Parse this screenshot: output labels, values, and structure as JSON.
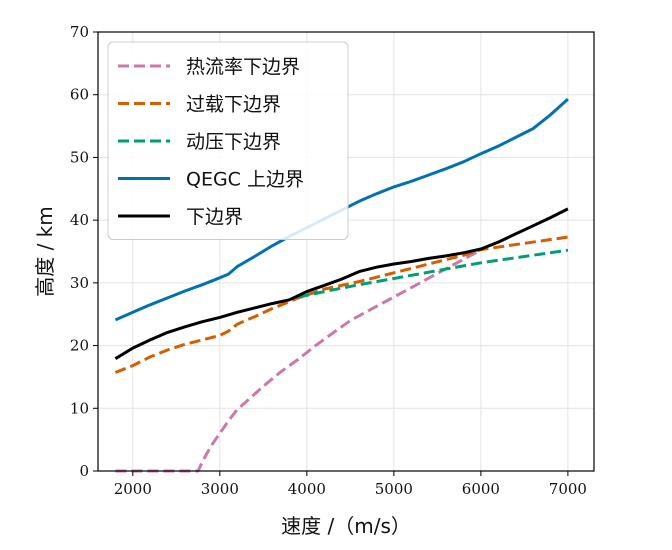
{
  "chart_data": {
    "type": "line",
    "xlabel": "速度 /（m/s）",
    "ylabel": "高度 / km",
    "xlim": [
      1600,
      7300
    ],
    "ylim": [
      0,
      70
    ],
    "x_ticks": [
      2000,
      3000,
      4000,
      5000,
      6000,
      7000
    ],
    "y_ticks": [
      0,
      10,
      20,
      30,
      40,
      50,
      60,
      70
    ],
    "grid": true,
    "legend_position": "top-left",
    "series": [
      {
        "name": "热流率下边界",
        "color": "#cc79a7",
        "dash": "dashed",
        "points": [
          [
            1800,
            0
          ],
          [
            2000,
            0
          ],
          [
            2300,
            0
          ],
          [
            2500,
            0
          ],
          [
            2700,
            0
          ],
          [
            2750,
            0
          ],
          [
            2800,
            1.5
          ],
          [
            2900,
            4
          ],
          [
            3000,
            6
          ],
          [
            3100,
            8
          ],
          [
            3200,
            9.8
          ],
          [
            3300,
            11
          ],
          [
            3500,
            13.5
          ],
          [
            3700,
            15.8
          ],
          [
            3900,
            17.8
          ],
          [
            4100,
            20
          ],
          [
            4300,
            22
          ],
          [
            4500,
            24
          ],
          [
            4700,
            25.5
          ],
          [
            4900,
            27
          ],
          [
            5100,
            28.5
          ],
          [
            5300,
            30
          ],
          [
            5500,
            31.5
          ],
          [
            5700,
            33
          ],
          [
            5900,
            34.5
          ],
          [
            6000,
            35.2
          ]
        ]
      },
      {
        "name": "过载下边界",
        "color": "#d55e00",
        "dash": "dashed",
        "points": [
          [
            1800,
            15.7
          ],
          [
            2000,
            16.8
          ],
          [
            2200,
            18.2
          ],
          [
            2400,
            19.3
          ],
          [
            2600,
            20.2
          ],
          [
            2800,
            20.9
          ],
          [
            3000,
            21.6
          ],
          [
            3100,
            22.3
          ],
          [
            3200,
            23.4
          ],
          [
            3400,
            24.6
          ],
          [
            3600,
            25.9
          ],
          [
            3800,
            27.0
          ],
          [
            3900,
            27.6
          ],
          [
            4200,
            29.0
          ],
          [
            4600,
            30.2
          ],
          [
            5000,
            31.6
          ],
          [
            5400,
            33.0
          ],
          [
            5800,
            34.4
          ],
          [
            6000,
            35.3
          ],
          [
            6500,
            36.3
          ],
          [
            7000,
            37.3
          ]
        ]
      },
      {
        "name": "动压下边界",
        "color": "#009e73",
        "dash": "dashed",
        "points": [
          [
            3900,
            27.7
          ],
          [
            4200,
            28.6
          ],
          [
            4600,
            29.7
          ],
          [
            5000,
            30.7
          ],
          [
            5400,
            31.7
          ],
          [
            5800,
            32.7
          ],
          [
            6000,
            33.2
          ],
          [
            6500,
            34.2
          ],
          [
            7000,
            35.2
          ]
        ]
      },
      {
        "name": "QEGC  上边界",
        "color": "#0072b2",
        "dash": "solid",
        "points": [
          [
            1800,
            24.1
          ],
          [
            2000,
            25.3
          ],
          [
            2200,
            26.5
          ],
          [
            2400,
            27.6
          ],
          [
            2600,
            28.7
          ],
          [
            2800,
            29.7
          ],
          [
            3000,
            30.8
          ],
          [
            3100,
            31.4
          ],
          [
            3200,
            32.6
          ],
          [
            3400,
            34.2
          ],
          [
            3600,
            35.9
          ],
          [
            3800,
            37.4
          ],
          [
            4000,
            38.8
          ],
          [
            4200,
            40.2
          ],
          [
            4400,
            41.6
          ],
          [
            4600,
            43.0
          ],
          [
            4800,
            44.2
          ],
          [
            5000,
            45.3
          ],
          [
            5200,
            46.2
          ],
          [
            5400,
            47.2
          ],
          [
            5600,
            48.2
          ],
          [
            5800,
            49.3
          ],
          [
            6000,
            50.6
          ],
          [
            6200,
            51.8
          ],
          [
            6400,
            53.2
          ],
          [
            6600,
            54.6
          ],
          [
            6800,
            56.8
          ],
          [
            7000,
            59.3
          ]
        ]
      },
      {
        "name": "下边界",
        "color": "#000000",
        "dash": "solid",
        "points": [
          [
            1800,
            17.9
          ],
          [
            2000,
            19.6
          ],
          [
            2200,
            20.9
          ],
          [
            2400,
            22.1
          ],
          [
            2600,
            23.0
          ],
          [
            2800,
            23.8
          ],
          [
            3000,
            24.5
          ],
          [
            3200,
            25.3
          ],
          [
            3400,
            26.0
          ],
          [
            3600,
            26.7
          ],
          [
            3800,
            27.3
          ],
          [
            4000,
            28.6
          ],
          [
            4200,
            29.6
          ],
          [
            4400,
            30.6
          ],
          [
            4600,
            31.8
          ],
          [
            4800,
            32.5
          ],
          [
            5000,
            33.0
          ],
          [
            5200,
            33.4
          ],
          [
            5400,
            33.9
          ],
          [
            5600,
            34.3
          ],
          [
            5800,
            34.8
          ],
          [
            6000,
            35.4
          ],
          [
            6200,
            36.5
          ],
          [
            6400,
            37.8
          ],
          [
            6600,
            39.1
          ],
          [
            6800,
            40.4
          ],
          [
            7000,
            41.8
          ]
        ]
      }
    ]
  }
}
